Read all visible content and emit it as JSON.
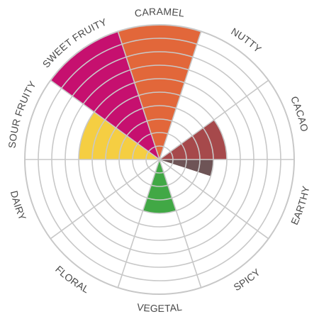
{
  "chart_data": {
    "type": "radial-bar",
    "scale_max": 10,
    "categories": [
      {
        "label": "CARAMEL",
        "value": 10,
        "color": "#e2673a"
      },
      {
        "label": "NUTTY",
        "value": 0,
        "color": "#9b9b9b"
      },
      {
        "label": "CACAO",
        "value": 5,
        "color": "#a6494b"
      },
      {
        "label": "EARTHY",
        "value": 0,
        "color": "#9b9b9b"
      },
      {
        "label": "SPICY",
        "value": 0,
        "color": "#9b9b9b"
      },
      {
        "label": "VEGETAL",
        "value": 4,
        "color": "#41a845"
      },
      {
        "label": "FLORAL",
        "value": 0,
        "color": "#9b9b9b"
      },
      {
        "label": "DAIRY",
        "value": 0,
        "color": "#9b9b9b"
      },
      {
        "label": "SOUR FRUITY",
        "value": 6,
        "color": "#f5ce42"
      },
      {
        "label": "SWEET FRUITY",
        "value": 10,
        "color": "#c6106f"
      }
    ],
    "extra_segments": [
      {
        "after": "CACAO",
        "value": 4,
        "color": "#6e5456"
      }
    ],
    "grid": true,
    "ring_count": 10
  }
}
